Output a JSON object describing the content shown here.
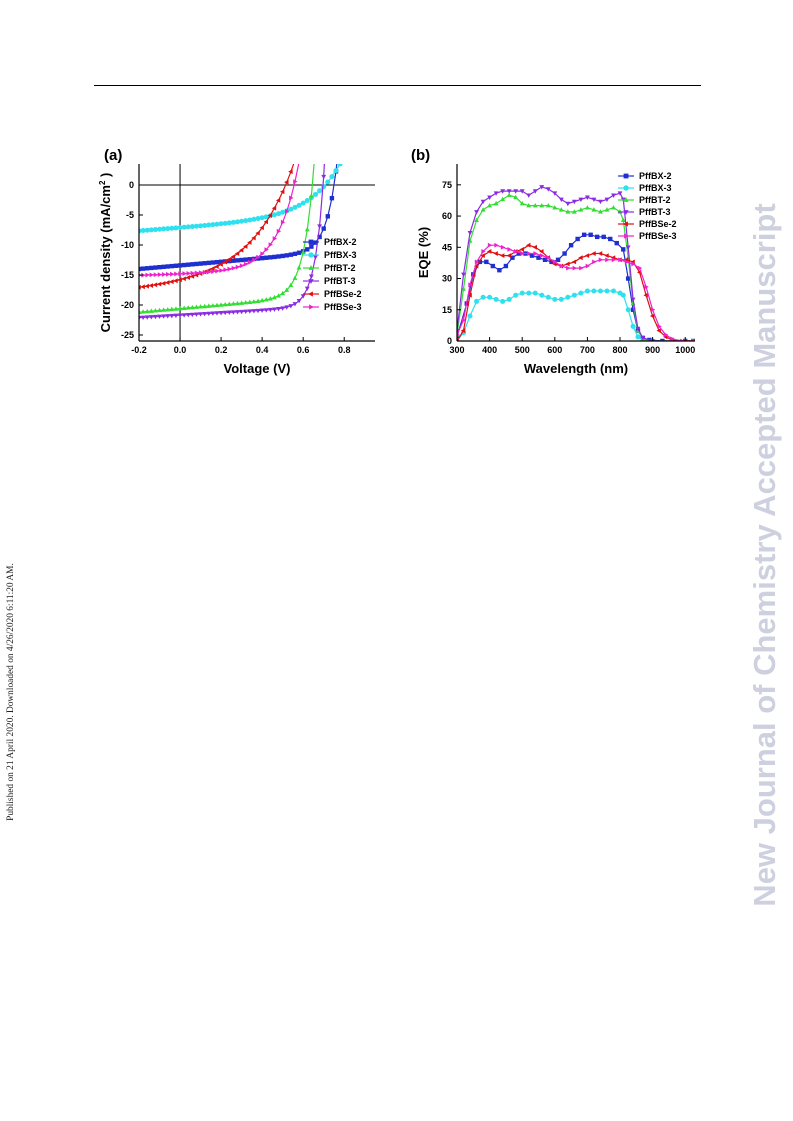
{
  "page": {
    "side_note": "Published on 21 April 2020. Downloaded on 4/26/2020 6:11:20 AM.",
    "watermark": "New Journal of Chemistry Accepted Manuscript"
  },
  "chart_data": [
    {
      "panel_label": "(a)",
      "type": "line",
      "xlabel": "Voltage (V)",
      "ylabel": "Current density (mA/cm",
      "ylabel_sup": "2",
      "ylabel_tail": ")",
      "xlim": [
        -0.2,
        0.95
      ],
      "ylim": [
        -26,
        3.5
      ],
      "xticks": [
        -0.2,
        0.0,
        0.2,
        0.4,
        0.6,
        0.8
      ],
      "xtick_labels": [
        "-0.2",
        "0.0",
        "0.2",
        "0.4",
        "0.6",
        "0.8"
      ],
      "yticks": [
        0,
        -5,
        -10,
        -15,
        -20,
        -25
      ],
      "ytick_labels": [
        "0",
        "-5",
        "-10",
        "-15",
        "-20",
        "-25"
      ],
      "zero_lines": true,
      "legend_position": "bottom-right",
      "series": [
        {
          "name": "PffBX-2",
          "color": "#1f2fd0",
          "marker": "square",
          "Jsc": -13.4,
          "Voc": 0.76,
          "slope": 3.0,
          "n": 0.05
        },
        {
          "name": "PffBX-3",
          "color": "#2fe0ef",
          "marker": "circle",
          "Jsc": -7.1,
          "Voc": 0.75,
          "slope": 2.5,
          "n": 0.15
        },
        {
          "name": "PffBT-2",
          "color": "#33dd33",
          "marker": "triangle-up",
          "Jsc": -20.6,
          "Voc": 0.65,
          "slope": 3.0,
          "n": 0.05
        },
        {
          "name": "PffBT-3",
          "color": "#8a2be2",
          "marker": "triangle-down",
          "Jsc": -21.7,
          "Voc": 0.7,
          "slope": 2.0,
          "n": 0.042
        },
        {
          "name": "PffBSe-2",
          "color": "#e01010",
          "marker": "triangle-left",
          "Jsc": -15.8,
          "Voc": 0.53,
          "slope": 2.5,
          "n": 0.2
        },
        {
          "name": "PffBSe-3",
          "color": "#ee22cc",
          "marker": "triangle-right",
          "Jsc": -14.8,
          "Voc": 0.56,
          "slope": 1.0,
          "n": 0.1
        }
      ]
    },
    {
      "panel_label": "(b)",
      "type": "line",
      "xlabel": "Wavelength (nm)",
      "ylabel": "EQE (%)",
      "xlim": [
        300,
        1030
      ],
      "ylim": [
        0,
        85
      ],
      "xticks": [
        300,
        400,
        500,
        600,
        700,
        800,
        900,
        1000
      ],
      "xtick_labels": [
        "300",
        "400",
        "500",
        "600",
        "700",
        "800",
        "900",
        "1000"
      ],
      "yticks": [
        0,
        15,
        30,
        45,
        60,
        75
      ],
      "ytick_labels": [
        "0",
        "15",
        "30",
        "45",
        "60",
        "75"
      ],
      "legend_position": "top-right",
      "series": [
        {
          "name": "PffBX-2",
          "color": "#1f2fd0",
          "marker": "square",
          "points": [
            [
              300,
              2
            ],
            [
              330,
              18
            ],
            [
              350,
              32
            ],
            [
              370,
              38
            ],
            [
              390,
              38
            ],
            [
              410,
              36
            ],
            [
              430,
              34
            ],
            [
              450,
              36
            ],
            [
              470,
              40
            ],
            [
              490,
              42
            ],
            [
              510,
              42
            ],
            [
              530,
              41
            ],
            [
              550,
              40
            ],
            [
              570,
              39
            ],
            [
              590,
              38
            ],
            [
              610,
              39
            ],
            [
              630,
              42
            ],
            [
              650,
              46
            ],
            [
              670,
              49
            ],
            [
              690,
              51
            ],
            [
              710,
              51
            ],
            [
              730,
              50
            ],
            [
              750,
              50
            ],
            [
              770,
              49
            ],
            [
              790,
              47
            ],
            [
              810,
              44
            ],
            [
              825,
              30
            ],
            [
              840,
              15
            ],
            [
              855,
              5
            ],
            [
              870,
              1.5
            ],
            [
              890,
              0.5
            ],
            [
              930,
              0
            ],
            [
              1000,
              0
            ],
            [
              1025,
              0
            ]
          ]
        },
        {
          "name": "PffBX-3",
          "color": "#2fe0ef",
          "marker": "circle",
          "points": [
            [
              300,
              0
            ],
            [
              320,
              4
            ],
            [
              340,
              12
            ],
            [
              360,
              19
            ],
            [
              380,
              21
            ],
            [
              400,
              21
            ],
            [
              420,
              20
            ],
            [
              440,
              19
            ],
            [
              460,
              20
            ],
            [
              480,
              22
            ],
            [
              500,
              23
            ],
            [
              520,
              23
            ],
            [
              540,
              23
            ],
            [
              560,
              22
            ],
            [
              580,
              21
            ],
            [
              600,
              20
            ],
            [
              620,
              20
            ],
            [
              640,
              21
            ],
            [
              660,
              22
            ],
            [
              680,
              23
            ],
            [
              700,
              24
            ],
            [
              720,
              24
            ],
            [
              740,
              24
            ],
            [
              760,
              24
            ],
            [
              780,
              24
            ],
            [
              800,
              23
            ],
            [
              810,
              22
            ],
            [
              825,
              15
            ],
            [
              840,
              7
            ],
            [
              855,
              2
            ],
            [
              870,
              0.5
            ],
            [
              900,
              0
            ],
            [
              1000,
              0
            ],
            [
              1025,
              0
            ]
          ]
        },
        {
          "name": "PffBT-2",
          "color": "#33dd33",
          "marker": "triangle-up",
          "points": [
            [
              300,
              3
            ],
            [
              320,
              25
            ],
            [
              340,
              48
            ],
            [
              360,
              58
            ],
            [
              380,
              63
            ],
            [
              400,
              65
            ],
            [
              420,
              66
            ],
            [
              440,
              68
            ],
            [
              460,
              70
            ],
            [
              480,
              69
            ],
            [
              500,
              66
            ],
            [
              520,
              65
            ],
            [
              540,
              65
            ],
            [
              560,
              65
            ],
            [
              580,
              65
            ],
            [
              600,
              64
            ],
            [
              620,
              63
            ],
            [
              640,
              62
            ],
            [
              660,
              62
            ],
            [
              680,
              63
            ],
            [
              700,
              64
            ],
            [
              720,
              63
            ],
            [
              740,
              62
            ],
            [
              760,
              63
            ],
            [
              780,
              64
            ],
            [
              800,
              62
            ],
            [
              810,
              58
            ],
            [
              825,
              40
            ],
            [
              840,
              18
            ],
            [
              855,
              5
            ],
            [
              870,
              1
            ],
            [
              900,
              0
            ],
            [
              1000,
              0
            ],
            [
              1025,
              0
            ]
          ]
        },
        {
          "name": "PffBT-3",
          "color": "#8a2be2",
          "marker": "triangle-down",
          "points": [
            [
              300,
              5
            ],
            [
              320,
              32
            ],
            [
              340,
              52
            ],
            [
              360,
              62
            ],
            [
              380,
              67
            ],
            [
              400,
              69
            ],
            [
              420,
              71
            ],
            [
              440,
              72
            ],
            [
              460,
              72
            ],
            [
              480,
              72
            ],
            [
              500,
              72
            ],
            [
              520,
              70
            ],
            [
              540,
              72
            ],
            [
              560,
              74
            ],
            [
              580,
              73
            ],
            [
              600,
              71
            ],
            [
              620,
              68
            ],
            [
              640,
              66
            ],
            [
              660,
              67
            ],
            [
              680,
              68
            ],
            [
              700,
              69
            ],
            [
              720,
              68
            ],
            [
              740,
              67
            ],
            [
              760,
              68
            ],
            [
              780,
              70
            ],
            [
              800,
              71
            ],
            [
              810,
              68
            ],
            [
              825,
              45
            ],
            [
              840,
              20
            ],
            [
              855,
              6
            ],
            [
              870,
              1.5
            ],
            [
              900,
              0
            ],
            [
              1000,
              0
            ],
            [
              1025,
              0
            ]
          ]
        },
        {
          "name": "PffBSe-2",
          "color": "#e01010",
          "marker": "triangle-left",
          "points": [
            [
              300,
              0
            ],
            [
              320,
              5
            ],
            [
              340,
              22
            ],
            [
              360,
              36
            ],
            [
              380,
              41
            ],
            [
              400,
              43
            ],
            [
              420,
              42
            ],
            [
              440,
              41
            ],
            [
              460,
              41
            ],
            [
              480,
              43
            ],
            [
              500,
              44
            ],
            [
              520,
              46
            ],
            [
              540,
              45
            ],
            [
              560,
              43
            ],
            [
              580,
              40
            ],
            [
              600,
              37
            ],
            [
              620,
              36
            ],
            [
              640,
              37
            ],
            [
              660,
              38
            ],
            [
              680,
              40
            ],
            [
              700,
              41
            ],
            [
              720,
              42
            ],
            [
              740,
              42
            ],
            [
              760,
              41
            ],
            [
              780,
              40
            ],
            [
              800,
              39
            ],
            [
              820,
              39
            ],
            [
              840,
              38
            ],
            [
              860,
              33
            ],
            [
              880,
              22
            ],
            [
              900,
              12
            ],
            [
              920,
              5
            ],
            [
              940,
              2
            ],
            [
              960,
              0.5
            ],
            [
              1000,
              0
            ],
            [
              1025,
              0
            ]
          ]
        },
        {
          "name": "PffBSe-3",
          "color": "#ee22cc",
          "marker": "triangle-right",
          "points": [
            [
              300,
              3
            ],
            [
              320,
              10
            ],
            [
              340,
              27
            ],
            [
              360,
              38
            ],
            [
              380,
              43
            ],
            [
              400,
              46
            ],
            [
              420,
              46
            ],
            [
              440,
              45
            ],
            [
              460,
              44
            ],
            [
              480,
              43
            ],
            [
              500,
              42
            ],
            [
              520,
              42
            ],
            [
              540,
              42
            ],
            [
              560,
              41
            ],
            [
              580,
              40
            ],
            [
              600,
              38
            ],
            [
              620,
              36
            ],
            [
              640,
              35
            ],
            [
              660,
              35
            ],
            [
              680,
              35
            ],
            [
              700,
              36
            ],
            [
              720,
              38
            ],
            [
              740,
              39
            ],
            [
              760,
              39
            ],
            [
              780,
              39
            ],
            [
              800,
              39
            ],
            [
              820,
              38
            ],
            [
              840,
              37
            ],
            [
              860,
              35
            ],
            [
              880,
              26
            ],
            [
              900,
              15
            ],
            [
              920,
              7
            ],
            [
              940,
              3
            ],
            [
              960,
              1
            ],
            [
              990,
              0
            ],
            [
              1025,
              0
            ]
          ]
        }
      ]
    }
  ]
}
